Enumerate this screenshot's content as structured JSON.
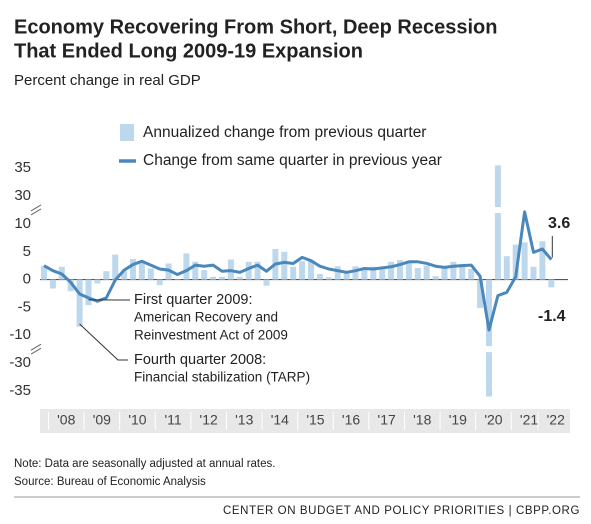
{
  "chart_data": {
    "type": "bar-line",
    "title": [
      "Economy Recovering From Short, Deep Recession",
      "That Ended Long 2009-19 Expansion"
    ],
    "subtitle": "Percent change in real GDP",
    "categories": [
      null,
      null,
      "'08",
      null,
      null,
      null,
      "'09",
      null,
      null,
      null,
      "'10",
      null,
      null,
      null,
      "'11",
      null,
      null,
      null,
      "'12",
      null,
      null,
      null,
      "'13",
      null,
      null,
      null,
      "'14",
      null,
      null,
      null,
      "'15",
      null,
      null,
      null,
      "'16",
      null,
      null,
      null,
      "'17",
      null,
      null,
      null,
      "'18",
      null,
      null,
      null,
      "'19",
      null,
      null,
      null,
      "'20",
      null,
      null,
      null,
      "'21",
      null,
      null,
      "'22"
    ],
    "series": [
      {
        "name": "Annualized change from previous quarter",
        "kind": "bar",
        "color": "#bdd7ec",
        "values": [
          2.5,
          -1.6,
          2.3,
          -2.1,
          -8.5,
          -4.6,
          -0.7,
          1.5,
          4.5,
          1.5,
          3.7,
          3.0,
          2.0,
          -1.0,
          2.9,
          -0.1,
          4.7,
          3.2,
          1.7,
          0.5,
          0.5,
          3.6,
          0.5,
          3.2,
          3.2,
          -1.1,
          5.5,
          5.0,
          2.3,
          3.3,
          3.3,
          1.0,
          0.4,
          2.4,
          1.2,
          2.4,
          2.0,
          2.3,
          2.2,
          3.2,
          3.5,
          3.3,
          2.1,
          2.5,
          0.6,
          2.2,
          3.2,
          2.8,
          1.9,
          -5.1,
          -36,
          35.5,
          4.2,
          6.3,
          6.7,
          2.3,
          6.9,
          -1.4
        ]
      },
      {
        "name": "Change from same quarter in previous year",
        "kind": "line",
        "color": "#4a87bb",
        "values": [
          2.5,
          1.6,
          1.0,
          -0.5,
          -2.6,
          -3.3,
          -3.9,
          -3.3,
          -0.1,
          1.7,
          2.7,
          3.3,
          2.6,
          1.9,
          1.7,
          0.9,
          1.6,
          2.6,
          2.4,
          2.6,
          1.5,
          1.6,
          1.3,
          2.0,
          2.6,
          1.5,
          2.8,
          3.1,
          2.9,
          4.0,
          3.4,
          2.4,
          1.9,
          1.6,
          1.3,
          1.6,
          2.0,
          1.9,
          2.1,
          2.3,
          2.7,
          3.2,
          3.2,
          2.9,
          2.4,
          2.2,
          2.4,
          2.5,
          2.6,
          0.6,
          -9.1,
          -2.9,
          -2.3,
          0.5,
          12.2,
          4.9,
          5.5,
          3.6
        ]
      }
    ],
    "y_segments": [
      [
        28,
        37
      ],
      [
        -12,
        12
      ],
      [
        -37,
        -28
      ]
    ],
    "yticks": [
      35,
      30,
      10,
      5,
      0,
      -5,
      -10,
      -30,
      -35
    ],
    "annotations": [
      {
        "heading": "First quarter 2009:",
        "lines": [
          "American Recovery and",
          "Reinvestment Act of 2009"
        ]
      },
      {
        "heading": "Fourth quarter 2008:",
        "lines": [
          "Financial stabilization (TARP)"
        ]
      }
    ],
    "note": "Note: Data are seasonally adjusted at annual rates.",
    "source": "Source: Bureau of Economic Analysis",
    "footer": "CENTER ON BUDGET AND POLICY PRIORITIES | CBPP.ORG"
  }
}
